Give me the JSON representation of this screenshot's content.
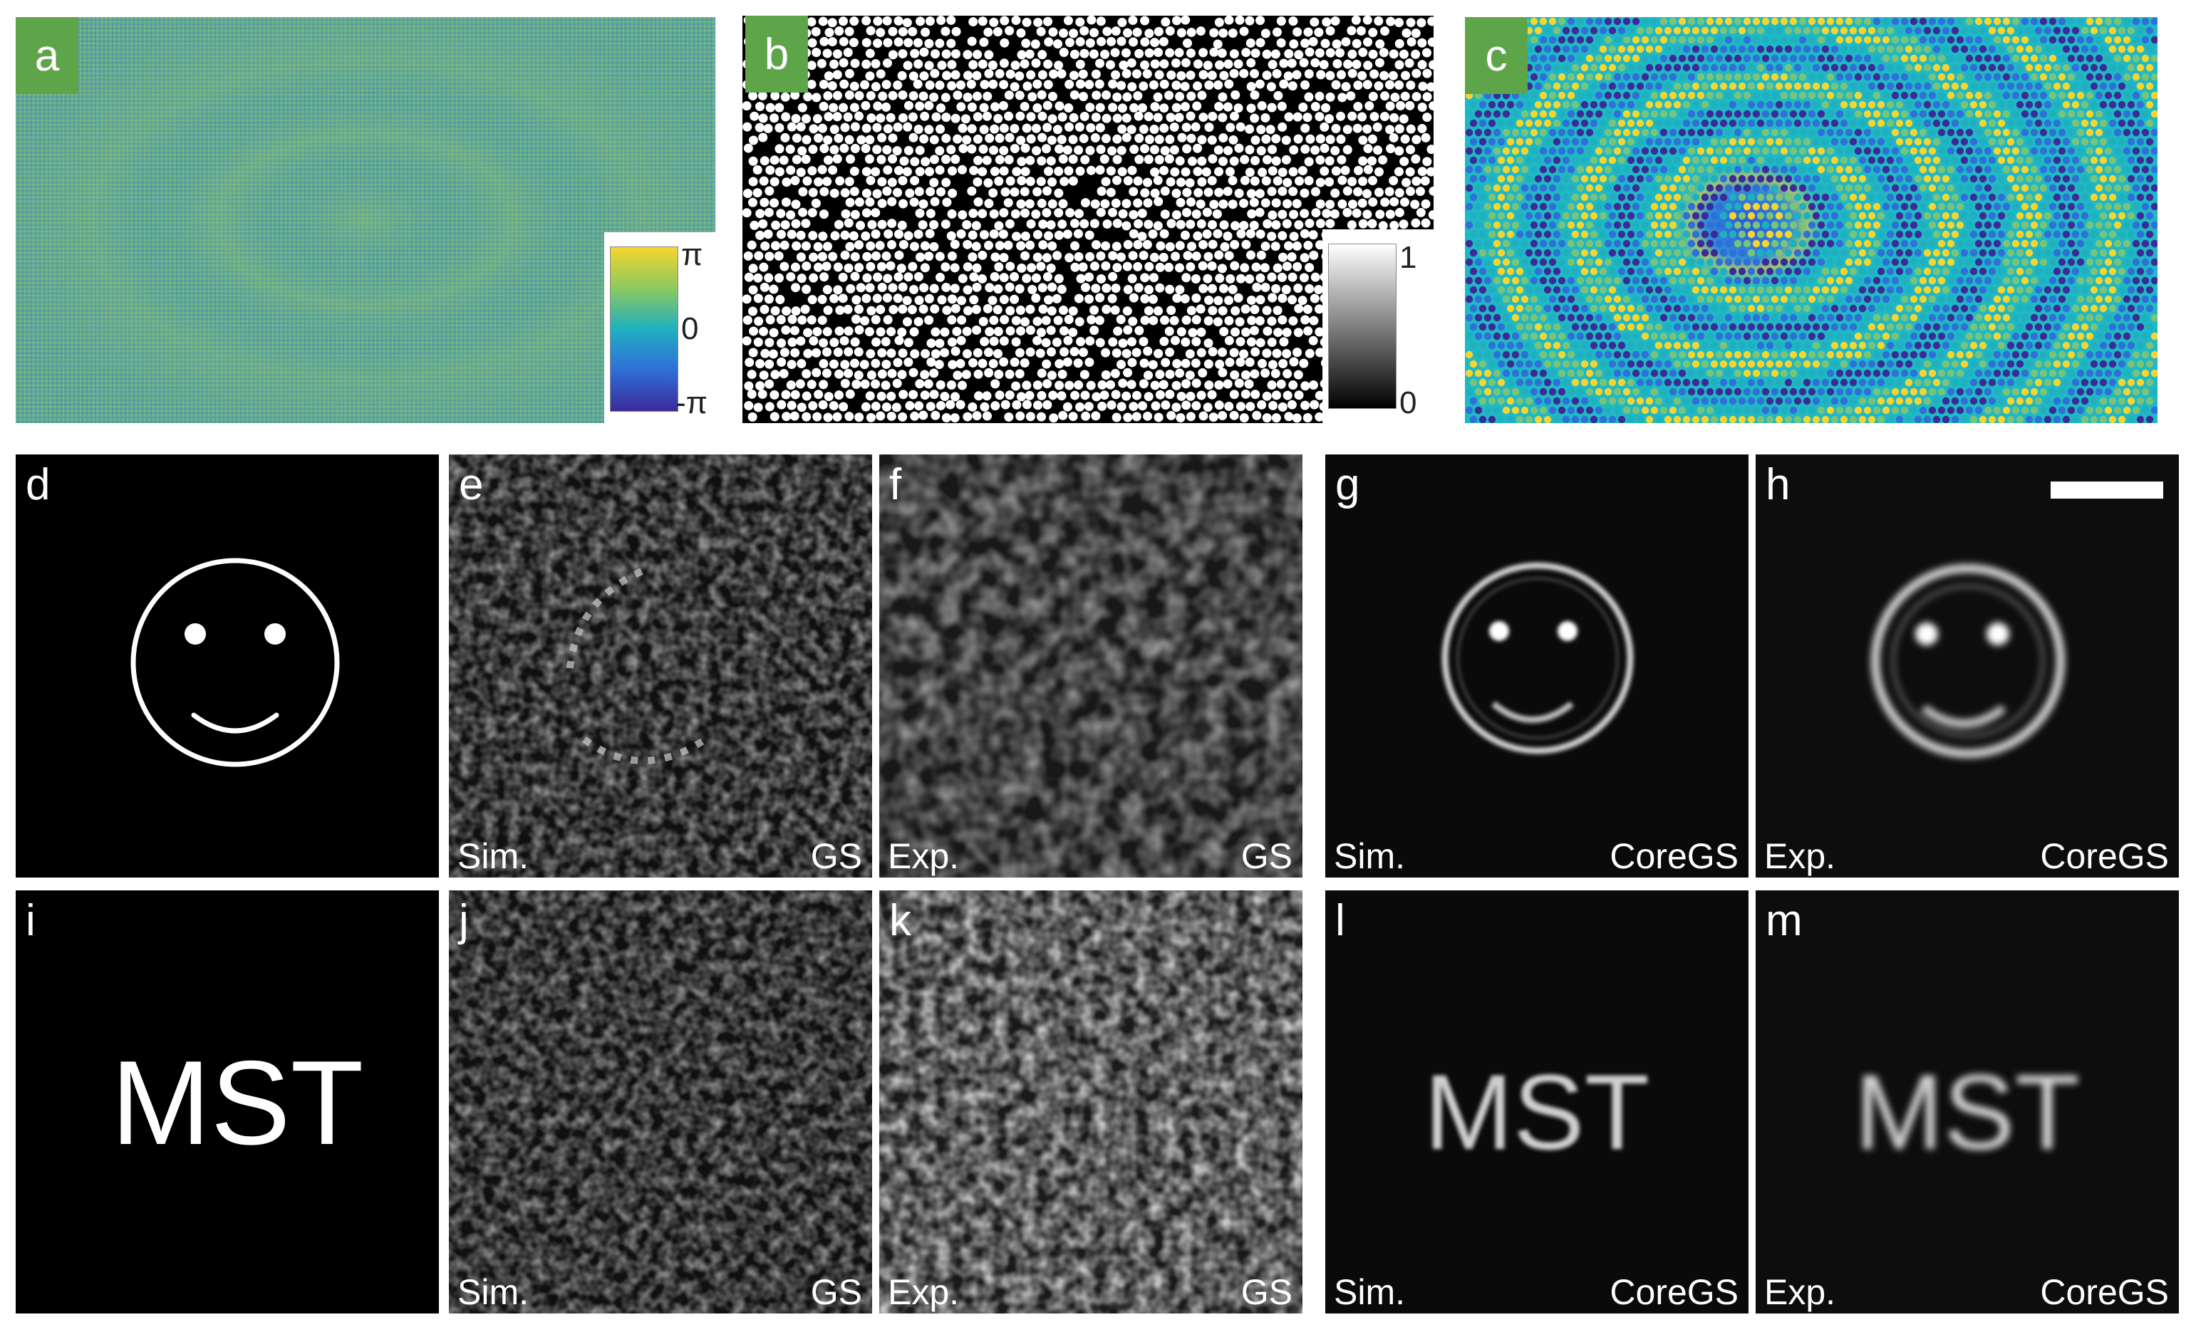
{
  "panels": {
    "a": {
      "letter": "a"
    },
    "b": {
      "letter": "b"
    },
    "c": {
      "letter": "c"
    },
    "d": {
      "letter": "d"
    },
    "e": {
      "letter": "e",
      "left_label": "Sim.",
      "right_label": "GS"
    },
    "f": {
      "letter": "f",
      "left_label": "Exp.",
      "right_label": "GS"
    },
    "g": {
      "letter": "g",
      "left_label": "Sim.",
      "right_label": "CoreGS"
    },
    "h": {
      "letter": "h",
      "left_label": "Exp.",
      "right_label": "CoreGS"
    },
    "i": {
      "letter": "i",
      "target_text": "MST"
    },
    "j": {
      "letter": "j",
      "left_label": "Sim.",
      "right_label": "GS"
    },
    "k": {
      "letter": "k",
      "left_label": "Exp.",
      "right_label": "GS"
    },
    "l": {
      "letter": "l",
      "left_label": "Sim.",
      "right_label": "CoreGS",
      "image_text": "MST"
    },
    "m": {
      "letter": "m",
      "left_label": "Exp.",
      "right_label": "CoreGS",
      "image_text": "MST"
    }
  },
  "phase_colorbar": {
    "max": "π",
    "mid": "0",
    "min": "-π"
  },
  "amplitude_colorbar": {
    "max": "1",
    "min": "0"
  },
  "colors": {
    "badge": "#5ea54a",
    "phase_map": [
      "#3b2a98",
      "#2f6fd8",
      "#1fb0c0",
      "#7ac47a",
      "#f6d530"
    ]
  }
}
